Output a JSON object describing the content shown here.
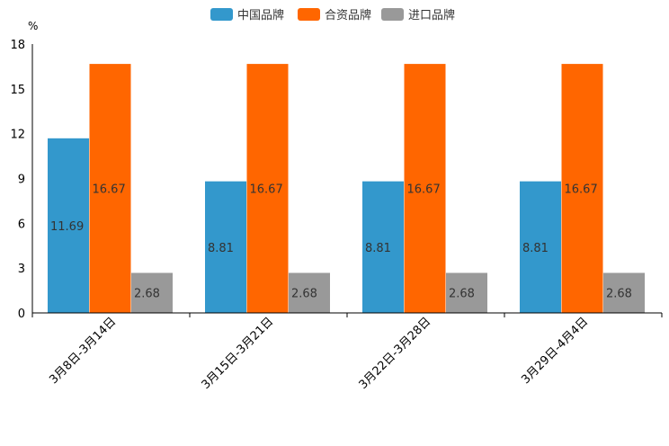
{
  "chart_data": {
    "type": "bar",
    "title": "",
    "ylabel": "%",
    "xlabel": "",
    "ylim": [
      0,
      18
    ],
    "yticks": [
      0,
      3,
      6,
      9,
      12,
      15,
      18
    ],
    "categories": [
      "3月8日-3月14日",
      "3月15日-3月21日",
      "3月22日-3月28日",
      "3月29日-4月4日"
    ],
    "series": [
      {
        "name": "中国品牌",
        "color": "#3398cc",
        "values": [
          11.69,
          8.81,
          8.81,
          8.81
        ]
      },
      {
        "name": "合资品牌",
        "color": "#ff6600",
        "values": [
          16.67,
          16.67,
          16.67,
          16.67
        ]
      },
      {
        "name": "进口品牌",
        "color": "#999999",
        "values": [
          2.68,
          2.68,
          2.68,
          2.68
        ]
      }
    ],
    "legend_position": "top-center",
    "grid": false
  }
}
